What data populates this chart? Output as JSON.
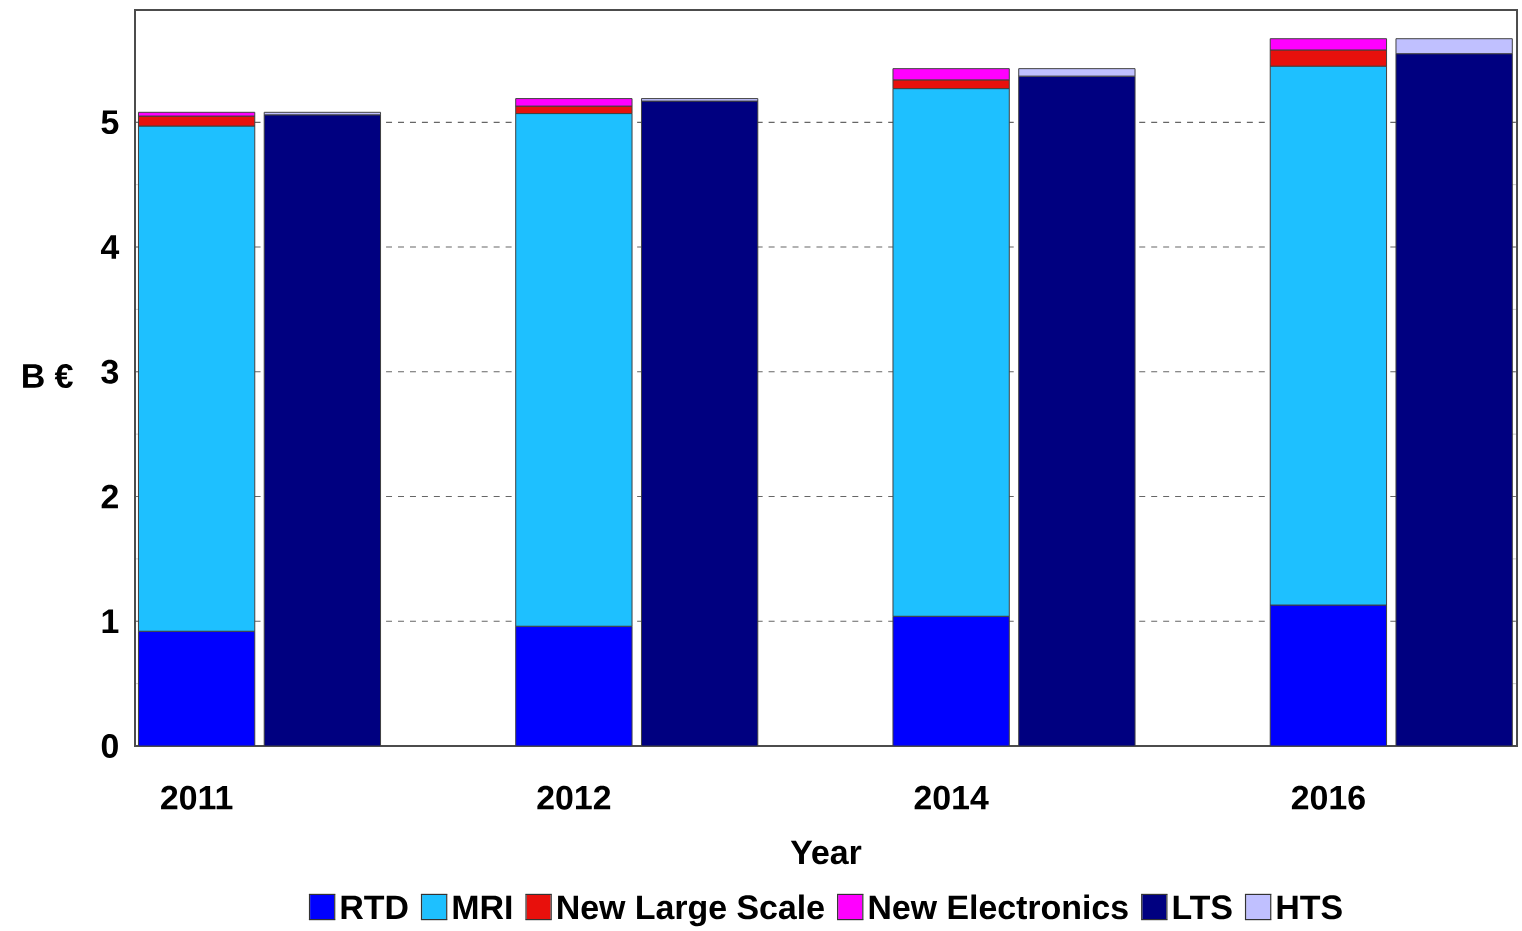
{
  "chart_data": {
    "type": "bar",
    "stacked": true,
    "xlabel": "Year",
    "ylabel": "B €",
    "categories": [
      "2011",
      null,
      null,
      "2012",
      null,
      null,
      "2014",
      null,
      null,
      "2016",
      null
    ],
    "series": [
      {
        "name": "RTD",
        "color": "#0000ff",
        "values": [
          0.92,
          null,
          null,
          0.96,
          null,
          null,
          1.04,
          null,
          null,
          1.13,
          null
        ]
      },
      {
        "name": "MRI",
        "color": "#1ec0ff",
        "values": [
          4.05,
          null,
          null,
          4.11,
          null,
          null,
          4.23,
          null,
          null,
          4.32,
          null
        ]
      },
      {
        "name": "New Large Scale",
        "color": "#e8100c",
        "values": [
          0.08,
          null,
          null,
          0.06,
          null,
          null,
          0.07,
          null,
          null,
          0.13,
          null
        ]
      },
      {
        "name": "New Electronics",
        "color": "#ff00ff",
        "values": [
          0.03,
          null,
          null,
          0.06,
          null,
          null,
          0.09,
          null,
          null,
          0.09,
          null
        ]
      },
      {
        "name": "LTS",
        "color": "#000080",
        "values": [
          null,
          5.06,
          null,
          null,
          5.17,
          null,
          null,
          5.37,
          null,
          null,
          5.55
        ]
      },
      {
        "name": "HTS",
        "color": "#c0c0ff",
        "values": [
          null,
          0.02,
          null,
          null,
          0.02,
          null,
          null,
          0.06,
          null,
          null,
          0.12
        ]
      }
    ],
    "ylim": [
      0,
      5.9
    ],
    "yticks": [
      0,
      1,
      2,
      3,
      4,
      5
    ],
    "grid": "y",
    "legend": "bottom"
  }
}
